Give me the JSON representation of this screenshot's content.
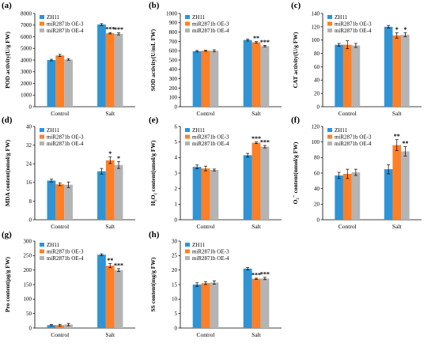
{
  "colors": {
    "ZH11": "#2f94d6",
    "OE3": "#ff7f27",
    "OE4": "#b4b4b4"
  },
  "legend": [
    "ZH11",
    "miR2871b OE-3",
    "miR2871b OE-4"
  ],
  "chart_data": [
    {
      "letter": "(a)",
      "type": "bar",
      "ylabel": "POD activity(U/g FW)",
      "categories": [
        "Control",
        "Salt"
      ],
      "ylim": [
        0,
        8000
      ],
      "yticks": [
        "0",
        "1000",
        "2000",
        "3000",
        "4000",
        "5000",
        "6000",
        "7000",
        "8000"
      ],
      "series": [
        {
          "name": "ZH11",
          "values": [
            4000,
            7050
          ],
          "err": [
            70,
            80
          ]
        },
        {
          "name": "miR2871b OE-3",
          "values": [
            4400,
            6300
          ],
          "err": [
            90,
            60
          ]
        },
        {
          "name": "miR2871b OE-4",
          "values": [
            4050,
            6250
          ],
          "err": [
            70,
            90
          ]
        }
      ],
      "sig": [
        [
          "",
          ""
        ],
        [
          "",
          "***"
        ],
        [
          "",
          "***"
        ]
      ]
    },
    {
      "letter": "(b)",
      "type": "bar",
      "ylabel": "SOD activity(U/mL FW)",
      "categories": [
        "Control",
        "Salt"
      ],
      "ylim": [
        0,
        1000
      ],
      "yticks": [
        "0",
        "100",
        "200",
        "300",
        "400",
        "500",
        "600",
        "700",
        "800",
        "900",
        "1000"
      ],
      "series": [
        {
          "name": "ZH11",
          "values": [
            595,
            715
          ],
          "err": [
            8,
            10
          ]
        },
        {
          "name": "miR2871b OE-3",
          "values": [
            600,
            690
          ],
          "err": [
            7,
            8
          ]
        },
        {
          "name": "miR2871b OE-4",
          "values": [
            600,
            650
          ],
          "err": [
            10,
            8
          ]
        }
      ],
      "sig": [
        [
          "",
          ""
        ],
        [
          "",
          "**"
        ],
        [
          "",
          "***"
        ]
      ]
    },
    {
      "letter": "(c)",
      "type": "bar",
      "ylabel": "CAT activity(U/g FW)",
      "categories": [
        "Control",
        "Salt"
      ],
      "ylim": [
        0,
        140
      ],
      "yticks": [
        "0",
        "20",
        "40",
        "60",
        "80",
        "100",
        "120",
        "140"
      ],
      "series": [
        {
          "name": "ZH11",
          "values": [
            93,
            120
          ],
          "err": [
            2,
            2
          ]
        },
        {
          "name": "miR2871b OE-3",
          "values": [
            93,
            107
          ],
          "err": [
            6,
            4
          ]
        },
        {
          "name": "miR2871b OE-4",
          "values": [
            92,
            108
          ],
          "err": [
            3,
            3
          ]
        }
      ],
      "sig": [
        [
          "",
          ""
        ],
        [
          "",
          "*"
        ],
        [
          "",
          "*"
        ]
      ]
    },
    {
      "letter": "(d)",
      "type": "bar",
      "ylabel": "MDA content(nmol/g FW)",
      "categories": [
        "Control",
        "Salt"
      ],
      "ylim": [
        0,
        40
      ],
      "yticks": [
        "0",
        "8",
        "16",
        "24",
        "32",
        "40"
      ],
      "series": [
        {
          "name": "ZH11",
          "values": [
            16.8,
            20.8
          ],
          "err": [
            0.6,
            1.2
          ]
        },
        {
          "name": "miR2871b OE-3",
          "values": [
            15.2,
            25.5
          ],
          "err": [
            0.6,
            1.4
          ]
        },
        {
          "name": "miR2871b OE-4",
          "values": [
            15.0,
            23.5
          ],
          "err": [
            1.2,
            1.5
          ]
        }
      ],
      "sig": [
        [
          "",
          ""
        ],
        [
          "",
          "*"
        ],
        [
          "",
          "*"
        ]
      ]
    },
    {
      "letter": "(e)",
      "type": "bar",
      "ylabel": "H₂O₂ content(umol/g FW)",
      "categories": [
        "Control",
        "Salt"
      ],
      "ylim": [
        0,
        6
      ],
      "yticks": [
        "0",
        "1",
        "2",
        "3",
        "4",
        "5",
        "6"
      ],
      "series": [
        {
          "name": "ZH11",
          "values": [
            3.4,
            4.15
          ],
          "err": [
            0.12,
            0.12
          ]
        },
        {
          "name": "miR2871b OE-3",
          "values": [
            3.3,
            4.95
          ],
          "err": [
            0.15,
            0.05
          ]
        },
        {
          "name": "miR2871b OE-4",
          "values": [
            3.2,
            4.7
          ],
          "err": [
            0.06,
            0.08
          ]
        }
      ],
      "sig": [
        [
          "",
          ""
        ],
        [
          "",
          "***"
        ],
        [
          "",
          "***"
        ]
      ]
    },
    {
      "letter": "(f)",
      "type": "bar",
      "ylabel": "O₂⁻ content(nmol/g FW)",
      "categories": [
        "Control",
        "Salt"
      ],
      "ylim": [
        0,
        120
      ],
      "yticks": [
        "0",
        "20",
        "40",
        "60",
        "80",
        "100",
        "120"
      ],
      "series": [
        {
          "name": "ZH11",
          "values": [
            57,
            65
          ],
          "err": [
            4,
            6
          ]
        },
        {
          "name": "miR2871b OE-3",
          "values": [
            59,
            96
          ],
          "err": [
            6,
            7
          ]
        },
        {
          "name": "miR2871b OE-4",
          "values": [
            61,
            88
          ],
          "err": [
            4,
            6
          ]
        }
      ],
      "sig": [
        [
          "",
          ""
        ],
        [
          "",
          "**"
        ],
        [
          "",
          "**"
        ]
      ]
    },
    {
      "letter": "(g)",
      "type": "bar",
      "ylabel": "Pro content(µg/g FW)",
      "categories": [
        "Control",
        "Salt"
      ],
      "ylim": [
        0,
        300
      ],
      "yticks": [
        "0",
        "50",
        "100",
        "150",
        "200",
        "250",
        "300"
      ],
      "series": [
        {
          "name": "ZH11",
          "values": [
            10,
            253
          ],
          "err": [
            2,
            3
          ]
        },
        {
          "name": "miR2871b OE-3",
          "values": [
            10,
            215
          ],
          "err": [
            3,
            7
          ]
        },
        {
          "name": "miR2871b OE-4",
          "values": [
            12,
            200
          ],
          "err": [
            4,
            5
          ]
        }
      ],
      "sig": [
        [
          "",
          ""
        ],
        [
          "",
          "**"
        ],
        [
          "",
          "***"
        ]
      ]
    },
    {
      "letter": "(h)",
      "type": "bar",
      "ylabel": "SS content(mg/g FW)",
      "categories": [
        "Control",
        "Salt"
      ],
      "ylim": [
        0,
        30
      ],
      "yticks": [
        "0",
        "5",
        "10",
        "15",
        "20",
        "25",
        "30"
      ],
      "series": [
        {
          "name": "ZH11",
          "values": [
            15.0,
            20.5
          ],
          "err": [
            0.6,
            0.4
          ]
        },
        {
          "name": "miR2871b OE-3",
          "values": [
            15.5,
            17.0
          ],
          "err": [
            0.5,
            0.2
          ]
        },
        {
          "name": "miR2871b OE-4",
          "values": [
            15.7,
            17.1
          ],
          "err": [
            0.6,
            0.4
          ]
        }
      ],
      "sig": [
        [
          "",
          ""
        ],
        [
          "",
          "***"
        ],
        [
          "",
          "***"
        ]
      ]
    }
  ]
}
